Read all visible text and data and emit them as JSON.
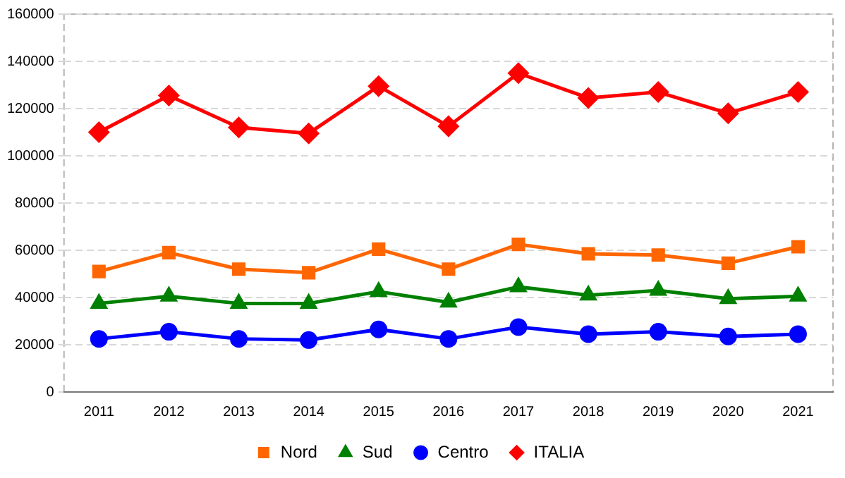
{
  "chart_data": {
    "type": "line",
    "categories": [
      "2011",
      "2012",
      "2013",
      "2014",
      "2015",
      "2016",
      "2017",
      "2018",
      "2019",
      "2020",
      "2021"
    ],
    "series": [
      {
        "name": "Nord",
        "color": "#ff6600",
        "marker": "square",
        "values": [
          51000,
          59000,
          52000,
          50500,
          60500,
          52000,
          62500,
          58500,
          58000,
          54500,
          61500
        ]
      },
      {
        "name": "Sud",
        "color": "#008000",
        "marker": "triangle",
        "values": [
          37500,
          40500,
          37500,
          37500,
          42500,
          38000,
          44500,
          41000,
          43000,
          39500,
          40500
        ]
      },
      {
        "name": "Centro",
        "color": "#0000ff",
        "marker": "circle",
        "values": [
          22500,
          25500,
          22500,
          22000,
          26500,
          22500,
          27500,
          24500,
          25500,
          23500,
          24500
        ]
      },
      {
        "name": "ITALIA",
        "color": "#ff0000",
        "marker": "diamond",
        "values": [
          110000,
          125500,
          112000,
          109500,
          129500,
          112500,
          135000,
          124500,
          127000,
          118000,
          127000
        ]
      }
    ],
    "ylim": [
      0,
      160000
    ],
    "yticks": [
      0,
      20000,
      40000,
      60000,
      80000,
      100000,
      120000,
      140000,
      160000
    ],
    "grid": "y",
    "legend": "bottom"
  }
}
